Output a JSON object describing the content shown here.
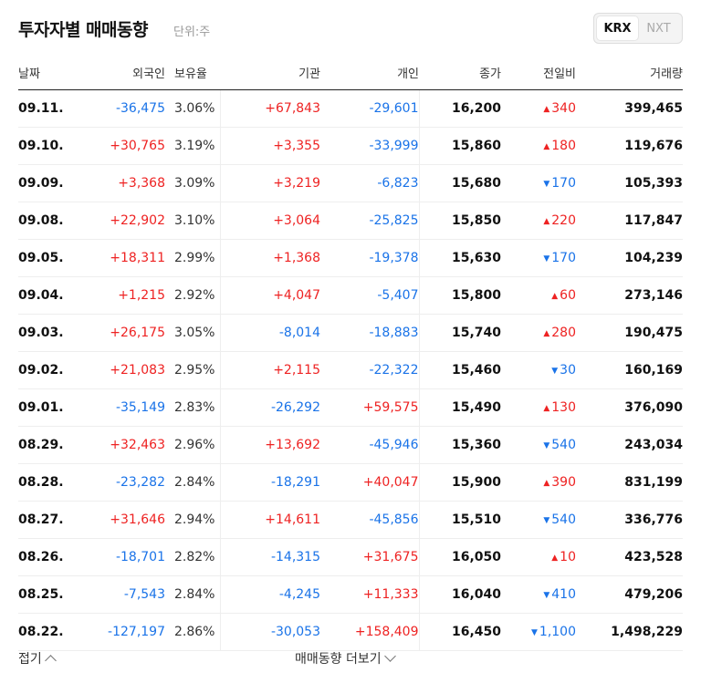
{
  "header": {
    "title": "투자자별 매매동향",
    "unit": "단위:주"
  },
  "market_tabs": [
    {
      "label": "KRX",
      "active": true
    },
    {
      "label": "NXT",
      "active": false
    }
  ],
  "columns": [
    "날짜",
    "외국인",
    "보유율",
    "기관",
    "개인",
    "종가",
    "전일비",
    "거래량"
  ],
  "colors": {
    "up": "#e22222",
    "down": "#1a73e8"
  },
  "rows": [
    {
      "date": "09.11.",
      "foreign": "-36,475",
      "holding": "3.06%",
      "inst": "+67,843",
      "indiv": "-29,601",
      "close": "16,200",
      "dir": "up",
      "change": "340",
      "volume": "399,465"
    },
    {
      "date": "09.10.",
      "foreign": "+30,765",
      "holding": "3.19%",
      "inst": "+3,355",
      "indiv": "-33,999",
      "close": "15,860",
      "dir": "up",
      "change": "180",
      "volume": "119,676"
    },
    {
      "date": "09.09.",
      "foreign": "+3,368",
      "holding": "3.09%",
      "inst": "+3,219",
      "indiv": "-6,823",
      "close": "15,680",
      "dir": "down",
      "change": "170",
      "volume": "105,393"
    },
    {
      "date": "09.08.",
      "foreign": "+22,902",
      "holding": "3.10%",
      "inst": "+3,064",
      "indiv": "-25,825",
      "close": "15,850",
      "dir": "up",
      "change": "220",
      "volume": "117,847"
    },
    {
      "date": "09.05.",
      "foreign": "+18,311",
      "holding": "2.99%",
      "inst": "+1,368",
      "indiv": "-19,378",
      "close": "15,630",
      "dir": "down",
      "change": "170",
      "volume": "104,239"
    },
    {
      "date": "09.04.",
      "foreign": "+1,215",
      "holding": "2.92%",
      "inst": "+4,047",
      "indiv": "-5,407",
      "close": "15,800",
      "dir": "up",
      "change": "60",
      "volume": "273,146"
    },
    {
      "date": "09.03.",
      "foreign": "+26,175",
      "holding": "3.05%",
      "inst": "-8,014",
      "indiv": "-18,883",
      "close": "15,740",
      "dir": "up",
      "change": "280",
      "volume": "190,475"
    },
    {
      "date": "09.02.",
      "foreign": "+21,083",
      "holding": "2.95%",
      "inst": "+2,115",
      "indiv": "-22,322",
      "close": "15,460",
      "dir": "down",
      "change": "30",
      "volume": "160,169"
    },
    {
      "date": "09.01.",
      "foreign": "-35,149",
      "holding": "2.83%",
      "inst": "-26,292",
      "indiv": "+59,575",
      "close": "15,490",
      "dir": "up",
      "change": "130",
      "volume": "376,090"
    },
    {
      "date": "08.29.",
      "foreign": "+32,463",
      "holding": "2.96%",
      "inst": "+13,692",
      "indiv": "-45,946",
      "close": "15,360",
      "dir": "down",
      "change": "540",
      "volume": "243,034"
    },
    {
      "date": "08.28.",
      "foreign": "-23,282",
      "holding": "2.84%",
      "inst": "-18,291",
      "indiv": "+40,047",
      "close": "15,900",
      "dir": "up",
      "change": "390",
      "volume": "831,199"
    },
    {
      "date": "08.27.",
      "foreign": "+31,646",
      "holding": "2.94%",
      "inst": "+14,611",
      "indiv": "-45,856",
      "close": "15,510",
      "dir": "down",
      "change": "540",
      "volume": "336,776"
    },
    {
      "date": "08.26.",
      "foreign": "-18,701",
      "holding": "2.82%",
      "inst": "-14,315",
      "indiv": "+31,675",
      "close": "16,050",
      "dir": "up",
      "change": "10",
      "volume": "423,528"
    },
    {
      "date": "08.25.",
      "foreign": "-7,543",
      "holding": "2.84%",
      "inst": "-4,245",
      "indiv": "+11,333",
      "close": "16,040",
      "dir": "down",
      "change": "410",
      "volume": "479,206"
    },
    {
      "date": "08.22.",
      "foreign": "-127,197",
      "holding": "2.86%",
      "inst": "-30,053",
      "indiv": "+158,409",
      "close": "16,450",
      "dir": "down",
      "change": "1,100",
      "volume": "1,498,229"
    }
  ],
  "footer": {
    "collapse_label": "접기",
    "more_label": "매매동향 더보기"
  }
}
